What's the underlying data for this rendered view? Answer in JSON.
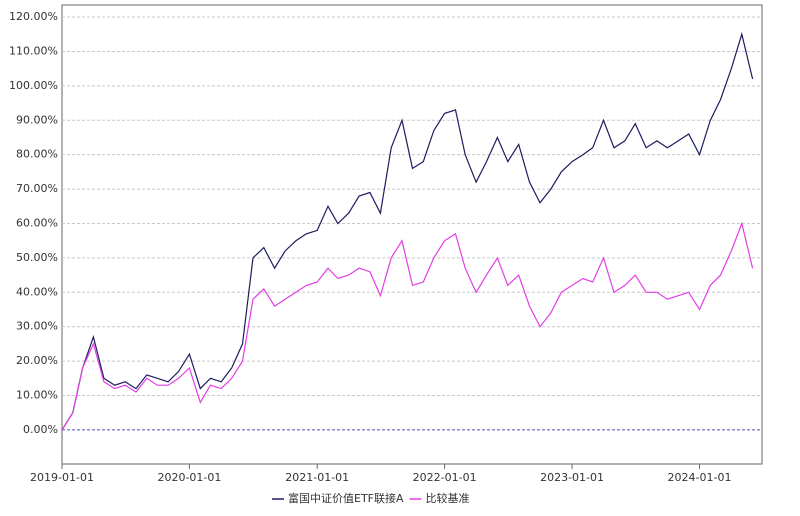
{
  "chart_data": {
    "type": "line",
    "x": [
      "2019-01-01",
      "2019-02-01",
      "2019-03-01",
      "2019-04-01",
      "2019-05-01",
      "2019-06-01",
      "2019-07-01",
      "2019-08-01",
      "2019-09-01",
      "2019-10-01",
      "2019-11-01",
      "2019-12-01",
      "2020-01-01",
      "2020-02-01",
      "2020-03-01",
      "2020-04-01",
      "2020-05-01",
      "2020-06-01",
      "2020-07-01",
      "2020-08-01",
      "2020-09-01",
      "2020-10-01",
      "2020-11-01",
      "2020-12-01",
      "2021-01-01",
      "2021-02-01",
      "2021-03-01",
      "2021-04-01",
      "2021-05-01",
      "2021-06-01",
      "2021-07-01",
      "2021-08-01",
      "2021-09-01",
      "2021-10-01",
      "2021-11-01",
      "2021-12-01",
      "2022-01-01",
      "2022-02-01",
      "2022-03-01",
      "2022-04-01",
      "2022-05-01",
      "2022-06-01",
      "2022-07-01",
      "2022-08-01",
      "2022-09-01",
      "2022-10-01",
      "2022-11-01",
      "2022-12-01",
      "2023-01-01",
      "2023-02-01",
      "2023-03-01",
      "2023-04-01",
      "2023-05-01",
      "2023-06-01",
      "2023-07-01",
      "2023-08-01",
      "2023-09-01",
      "2023-10-01",
      "2023-11-01",
      "2023-12-01",
      "2024-01-01",
      "2024-02-01",
      "2024-03-01",
      "2024-04-01",
      "2024-05-01",
      "2024-06-01"
    ],
    "series": [
      {
        "name": "富国中证价值ETF联接A",
        "color": "#1c1c60",
        "values": [
          0,
          5,
          18,
          27,
          15,
          13,
          14,
          12,
          16,
          15,
          14,
          17,
          22,
          12,
          15,
          14,
          18,
          25,
          50,
          53,
          47,
          52,
          55,
          57,
          58,
          65,
          60,
          63,
          68,
          69,
          63,
          82,
          90,
          76,
          78,
          87,
          92,
          93,
          80,
          72,
          78,
          85,
          78,
          83,
          72,
          66,
          70,
          75,
          78,
          80,
          82,
          90,
          82,
          84,
          89,
          82,
          84,
          82,
          84,
          86,
          80,
          90,
          96,
          105,
          115,
          102
        ]
      },
      {
        "name": "比较基准",
        "color": "#e23fe6",
        "values": [
          0,
          5,
          18,
          25,
          14,
          12,
          13,
          11,
          15,
          13,
          13,
          15,
          18,
          8,
          13,
          12,
          15,
          20,
          38,
          41,
          36,
          38,
          40,
          42,
          43,
          47,
          44,
          45,
          47,
          46,
          39,
          50,
          55,
          42,
          43,
          50,
          55,
          57,
          47,
          40,
          45,
          50,
          42,
          45,
          36,
          30,
          34,
          40,
          42,
          44,
          43,
          50,
          40,
          42,
          45,
          40,
          40,
          38,
          39,
          40,
          35,
          42,
          45,
          52,
          60,
          47
        ]
      }
    ],
    "xlim": [
      "2019-01-01",
      "2024-06-28"
    ],
    "xticks": [
      "2019-01-01",
      "2020-01-01",
      "2021-01-01",
      "2022-01-01",
      "2023-01-01",
      "2024-01-01"
    ],
    "ylim": [
      -9.9,
      123.5
    ],
    "yticks": [
      {
        "value": 0,
        "label": "0.00%"
      },
      {
        "value": 10,
        "label": "10.00%"
      },
      {
        "value": 20,
        "label": "20.00%"
      },
      {
        "value": 30,
        "label": "30.00%"
      },
      {
        "value": 40,
        "label": "40.00%"
      },
      {
        "value": 50,
        "label": "50.00%"
      },
      {
        "value": 60,
        "label": "60.00%"
      },
      {
        "value": 70,
        "label": "70.00%"
      },
      {
        "value": 80,
        "label": "80.00%"
      },
      {
        "value": 90,
        "label": "90.00%"
      },
      {
        "value": 100,
        "label": "100.00%"
      },
      {
        "value": 110,
        "label": "110.00%"
      },
      {
        "value": 120,
        "label": "120.00%"
      }
    ],
    "grid": true,
    "legend": "bottom"
  }
}
